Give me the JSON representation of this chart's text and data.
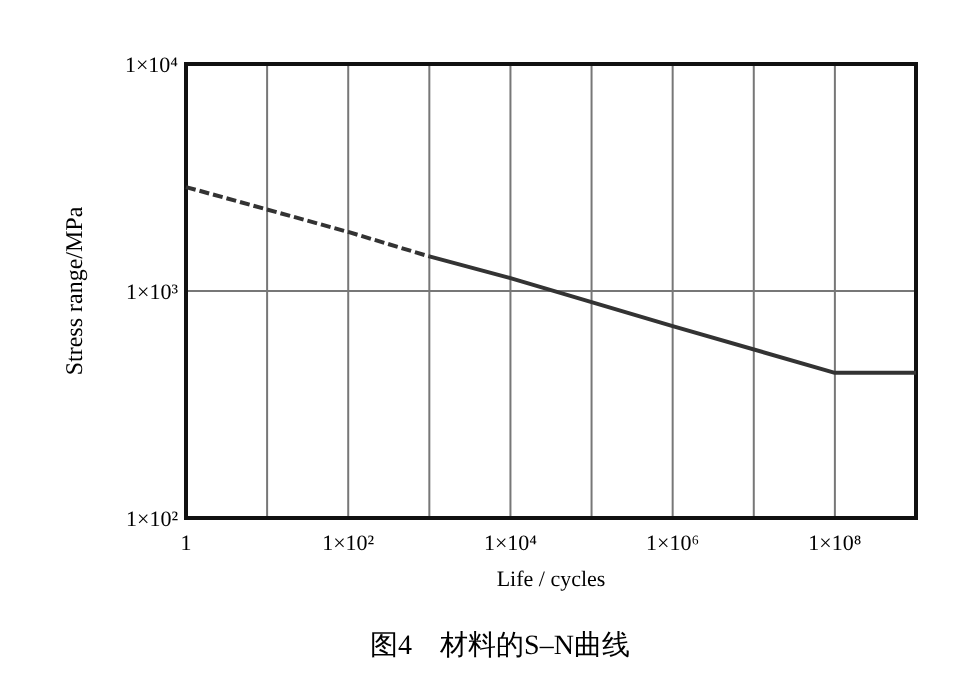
{
  "chart_data": {
    "type": "line",
    "xlabel": "Life / cycles",
    "ylabel": "Stress range/MPa",
    "log": "xy",
    "series": [
      {
        "color": "#333333",
        "line_style": "dashed",
        "x": [
          1,
          100,
          1000
        ],
        "values": [
          2870,
          1820,
          1420
        ]
      },
      {
        "color": "#333333",
        "line_style": "solid",
        "x": [
          1000,
          10000,
          1000000,
          100000000,
          1000000000
        ],
        "values": [
          1420,
          1140,
          700,
          436,
          436
        ]
      }
    ],
    "xlim": [
      1,
      1000000000
    ],
    "ylim": [
      100,
      10000
    ],
    "xticks": [
      1,
      {
        "value": 10,
        "label": null
      },
      {
        "value": 100,
        "label": "1×10²"
      },
      {
        "value": 1000,
        "label": null
      },
      {
        "value": 10000,
        "label": "1×10⁴"
      },
      {
        "value": 100000,
        "label": null
      },
      {
        "value": 1000000,
        "label": "1×10⁶"
      },
      {
        "value": 10000000,
        "label": null
      },
      {
        "value": 100000000,
        "label": "1×10⁸"
      },
      {
        "value": 1000000000,
        "label": null
      }
    ],
    "yticks": [
      {
        "value": 100,
        "label": "1×10²"
      },
      {
        "value": 1000,
        "label": "1×10³"
      },
      {
        "value": 10000,
        "label": "1×10⁴"
      }
    ],
    "grid": true,
    "annotations": [
      "图4　材料的S–N曲线"
    ]
  }
}
